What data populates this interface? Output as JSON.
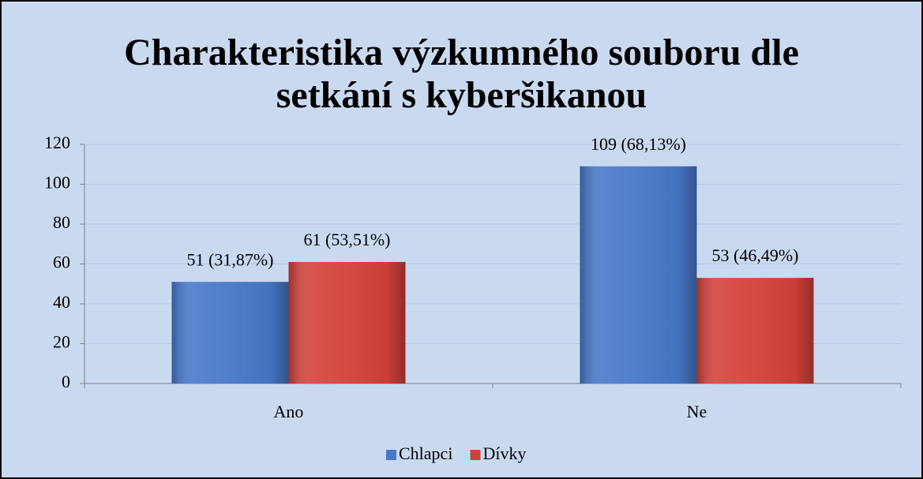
{
  "chart_data": {
    "type": "bar",
    "title": "Charakteristika výzkumného souboru dle setkání s kyberšikanou",
    "categories": [
      "Ano",
      "Ne"
    ],
    "series": [
      {
        "name": "Chlapci",
        "color": "#4677c8",
        "values": [
          51,
          109
        ],
        "value_labels": [
          "51 (31,87%)",
          "109 (68,13%)"
        ]
      },
      {
        "name": "Dívky",
        "color": "#d2403a",
        "values": [
          61,
          53
        ],
        "value_labels": [
          "61 (53,51%)",
          "53 (46,49%)"
        ]
      }
    ],
    "ylim": [
      0,
      120
    ],
    "yticks": [
      0,
      20,
      40,
      60,
      80,
      100,
      120
    ],
    "grid": true,
    "legend": "bottom"
  }
}
